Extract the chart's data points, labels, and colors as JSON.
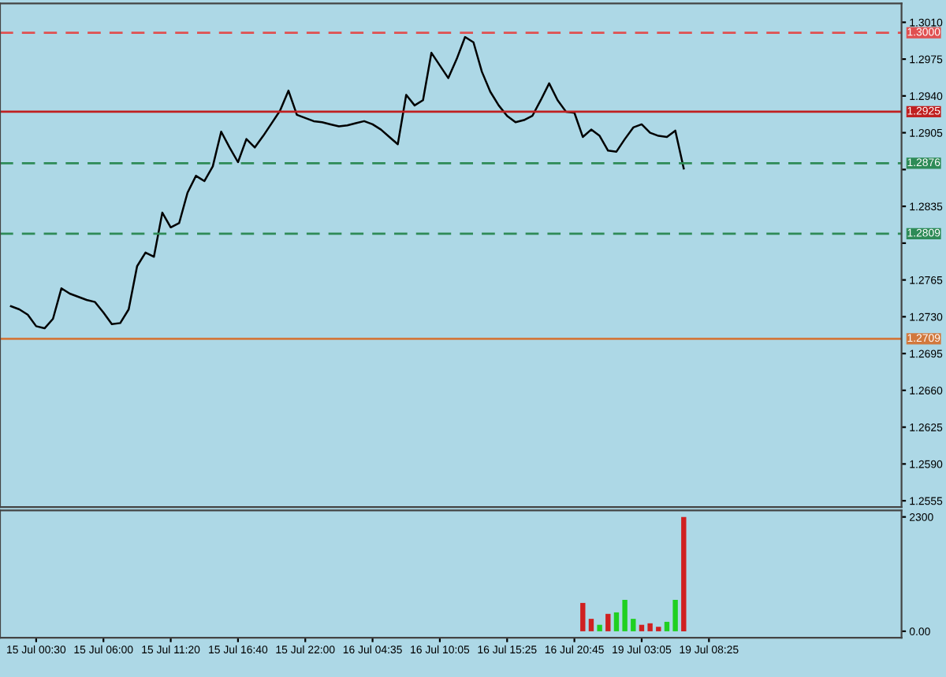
{
  "chart_data": [
    {
      "type": "line",
      "categories": [
        null,
        null,
        null,
        null,
        null,
        null,
        null,
        null,
        null,
        null,
        null,
        null,
        null,
        null,
        null,
        null,
        null,
        null,
        null,
        null,
        null,
        null,
        null,
        null,
        null,
        null,
        null,
        null,
        null,
        null,
        null,
        null,
        null,
        null,
        null,
        null,
        null,
        null,
        null,
        null,
        null,
        null,
        null,
        null,
        null,
        null,
        null,
        null,
        null,
        null,
        null,
        null,
        null,
        null,
        null,
        null,
        null,
        null,
        null,
        null,
        null,
        null,
        null,
        null,
        null,
        null,
        null,
        null,
        null,
        null,
        null,
        null,
        null,
        null,
        null,
        null,
        null,
        null,
        null,
        null,
        null,
        null,
        null,
        null,
        null,
        null,
        null,
        null,
        null,
        null,
        null,
        null,
        null,
        null,
        null,
        null,
        null,
        null,
        null,
        null,
        null,
        null,
        null,
        null,
        null
      ],
      "ylim": [
        1.2549,
        1.3028
      ],
      "yticks": [
        {
          "value": 1.301,
          "label": "1.3010"
        },
        1.2975,
        {
          "value": 1.294,
          "label": "1.2940"
        },
        1.2905,
        {
          "value": 1.287,
          "label": null
        },
        1.2835,
        {
          "value": 1.28,
          "label": null
        },
        1.2765,
        {
          "value": 1.273,
          "label": "1.2730"
        },
        1.2695,
        {
          "value": 1.266,
          "label": "1.2660"
        },
        1.2625,
        {
          "value": 1.259,
          "label": "1.2590"
        },
        1.2555
      ],
      "tick_labels": "y",
      "grid": false,
      "legend": false,
      "marker": "none",
      "line_style": "solid",
      "series": [
        {
          "color": "#000000",
          "values": [
            1.274,
            1.2737,
            1.2732,
            1.2721,
            1.2719,
            1.2728,
            1.2757,
            1.2752,
            1.2749,
            1.2746,
            1.2744,
            1.2734,
            1.2723,
            1.2724,
            1.2737,
            1.2778,
            1.2791,
            1.2787,
            1.2829,
            1.2815,
            1.2819,
            1.2848,
            1.2864,
            1.2859,
            1.2873,
            1.2906,
            1.2891,
            1.2877,
            1.2899,
            1.2891,
            1.2902,
            1.2914,
            1.2926,
            1.2945,
            1.2922,
            1.2919,
            1.2916,
            1.2915,
            1.2913,
            1.2911,
            1.2912,
            1.2914,
            1.2916,
            1.2913,
            1.2908,
            1.2901,
            1.2894,
            1.2941,
            1.2931,
            1.2936,
            1.2981,
            1.2969,
            1.2957,
            1.2975,
            1.2996,
            1.2991,
            1.2963,
            1.2944,
            1.2931,
            1.2921,
            1.2915,
            1.2917,
            1.2921,
            1.2936,
            1.2952,
            1.2936,
            1.2925,
            1.2924,
            1.2901,
            1.2908,
            1.2902,
            1.2888,
            1.2887,
            1.2899,
            1.291,
            1.2913,
            1.2905,
            1.2902,
            1.2901,
            1.2907,
            1.2871,
            null,
            null,
            null,
            null,
            null,
            null,
            null,
            null,
            null,
            null,
            null,
            null,
            null,
            null,
            null,
            null,
            null,
            null,
            null,
            null,
            null,
            null,
            null,
            null
          ]
        }
      ],
      "ref_lines": [
        {
          "axis": "y",
          "value": 1.3,
          "label": "1.3000",
          "color": "#e05050",
          "line_style": "dashed"
        },
        {
          "axis": "y",
          "value": 1.2925,
          "label": "1.2925",
          "color": "#c02020",
          "line_style": "solid"
        },
        {
          "axis": "y",
          "value": 1.2876,
          "label": "1.2876",
          "color": "#2e8b57",
          "line_style": "dashed"
        },
        {
          "axis": "y",
          "value": 1.2809,
          "label": "1.2809",
          "color": "#2e8b57",
          "line_style": "dashed"
        },
        {
          "axis": "y",
          "value": 1.2709,
          "label": "1.2709",
          "color": "#d2783c",
          "line_style": "solid"
        }
      ]
    },
    {
      "type": "bar",
      "categories": [
        null,
        null,
        null,
        "15 Jul 00:30",
        null,
        null,
        null,
        null,
        null,
        null,
        null,
        "15 Jul 06:00",
        null,
        null,
        null,
        null,
        null,
        null,
        null,
        "15 Jul 11:20",
        null,
        null,
        null,
        null,
        null,
        null,
        null,
        "15 Jul 16:40",
        null,
        null,
        null,
        null,
        null,
        null,
        null,
        "15 Jul 22:00",
        null,
        null,
        null,
        null,
        null,
        null,
        null,
        "16 Jul 04:35",
        null,
        null,
        null,
        null,
        null,
        null,
        null,
        "16 Jul 10:05",
        null,
        null,
        null,
        null,
        null,
        null,
        null,
        "16 Jul 15:25",
        null,
        null,
        null,
        null,
        null,
        null,
        null,
        "16 Jul 20:45",
        null,
        null,
        null,
        null,
        null,
        null,
        null,
        "19 Jul 03:05",
        null,
        null,
        null,
        null,
        null,
        null,
        null,
        "19 Jul 08:25",
        null,
        null,
        null,
        null,
        null,
        null,
        null,
        null,
        null,
        null,
        null,
        null,
        null,
        null,
        null,
        null,
        null,
        null,
        null,
        null,
        null
      ],
      "ylim": [
        -130,
        2430
      ],
      "yticks": [
        {
          "value": 0,
          "label": "0.00"
        },
        2300
      ],
      "grid": false,
      "legend": false,
      "values": [
        null,
        null,
        null,
        null,
        null,
        null,
        null,
        null,
        null,
        null,
        null,
        null,
        null,
        null,
        null,
        null,
        null,
        null,
        null,
        null,
        null,
        null,
        null,
        null,
        null,
        null,
        null,
        null,
        null,
        null,
        null,
        null,
        null,
        null,
        null,
        null,
        null,
        null,
        null,
        null,
        null,
        null,
        null,
        null,
        null,
        null,
        null,
        null,
        null,
        null,
        null,
        null,
        null,
        null,
        null,
        null,
        null,
        null,
        null,
        null,
        null,
        null,
        null,
        null,
        null,
        null,
        null,
        null,
        570,
        250,
        130,
        350,
        380,
        630,
        250,
        130,
        160,
        90,
        190,
        630,
        2300,
        null,
        null,
        null,
        null,
        null,
        null,
        null,
        null,
        null,
        null,
        null,
        null,
        null,
        null,
        null,
        null,
        null,
        null,
        null,
        null,
        null,
        null,
        null,
        null
      ],
      "colors": [
        null,
        null,
        null,
        null,
        null,
        null,
        null,
        null,
        null,
        null,
        null,
        null,
        null,
        null,
        null,
        null,
        null,
        null,
        null,
        null,
        null,
        null,
        null,
        null,
        null,
        null,
        null,
        null,
        null,
        null,
        null,
        null,
        null,
        null,
        null,
        null,
        null,
        null,
        null,
        null,
        null,
        null,
        null,
        null,
        null,
        null,
        null,
        null,
        null,
        null,
        null,
        null,
        null,
        null,
        null,
        null,
        null,
        null,
        null,
        null,
        null,
        null,
        null,
        null,
        null,
        null,
        null,
        null,
        "#d02020",
        "#d02020",
        "#20d020",
        "#d02020",
        "#20d020",
        "#20d020",
        "#20d020",
        "#d02020",
        "#d02020",
        "#d02020",
        "#20d020",
        "#20d020",
        "#d02020",
        null,
        null,
        null,
        null,
        null,
        null,
        null,
        null,
        null,
        null,
        null,
        null,
        null,
        null,
        null,
        null,
        null,
        null,
        null,
        null,
        null,
        null,
        null,
        null
      ]
    }
  ]
}
